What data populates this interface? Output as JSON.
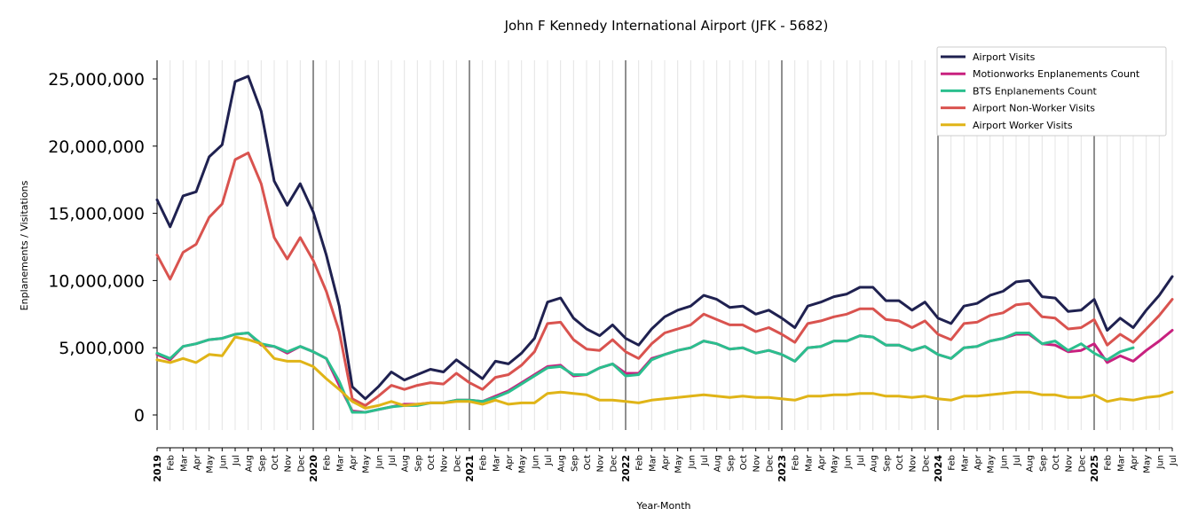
{
  "chart_data": {
    "type": "line",
    "title": "John F Kennedy International Airport (JFK - 5682)",
    "xlabel": "Year-Month",
    "ylabel": "Enplanements / Visitations",
    "ylim": [
      -1200000,
      26500000
    ],
    "yticks": [
      0,
      5000000,
      10000000,
      15000000,
      20000000,
      25000000
    ],
    "ytick_labels": [
      "0",
      "5,000,000",
      "10,000,000",
      "15,000,000",
      "20,000,000",
      "25,000,000"
    ],
    "grid": "vertical monthly",
    "legend_position": "top-right",
    "x": [
      "2019-01",
      "2019-02",
      "2019-03",
      "2019-04",
      "2019-05",
      "2019-06",
      "2019-07",
      "2019-08",
      "2019-09",
      "2019-10",
      "2019-11",
      "2019-12",
      "2020-01",
      "2020-02",
      "2020-03",
      "2020-04",
      "2020-05",
      "2020-06",
      "2020-07",
      "2020-08",
      "2020-09",
      "2020-10",
      "2020-11",
      "2020-12",
      "2021-01",
      "2021-02",
      "2021-03",
      "2021-04",
      "2021-05",
      "2021-06",
      "2021-07",
      "2021-08",
      "2021-09",
      "2021-10",
      "2021-11",
      "2021-12",
      "2022-01",
      "2022-02",
      "2022-03",
      "2022-04",
      "2022-05",
      "2022-06",
      "2022-07",
      "2022-08",
      "2022-09",
      "2022-10",
      "2022-11",
      "2022-12",
      "2023-01",
      "2023-02",
      "2023-03",
      "2023-04",
      "2023-05",
      "2023-06",
      "2023-07",
      "2023-08",
      "2023-09",
      "2023-10",
      "2023-11",
      "2023-12",
      "2024-01",
      "2024-02",
      "2024-03",
      "2024-04",
      "2024-05",
      "2024-06",
      "2024-07",
      "2024-08",
      "2024-09",
      "2024-10",
      "2024-11",
      "2024-12",
      "2025-01",
      "2025-02",
      "2025-03",
      "2025-04",
      "2025-05",
      "2025-06",
      "2025-07"
    ],
    "x_tick_labels": [
      "2019",
      "Feb",
      "Mar",
      "Apr",
      "May",
      "Jun",
      "Jul",
      "Aug",
      "Sep",
      "Oct",
      "Nov",
      "Dec",
      "2020",
      "Feb",
      "Mar",
      "Apr",
      "May",
      "Jun",
      "Jul",
      "Aug",
      "Sep",
      "Oct",
      "Nov",
      "Dec",
      "2021",
      "Feb",
      "Mar",
      "Apr",
      "May",
      "Jun",
      "Jul",
      "Aug",
      "Sep",
      "Oct",
      "Nov",
      "Dec",
      "2022",
      "Feb",
      "Mar",
      "Apr",
      "May",
      "Jun",
      "Jul",
      "Aug",
      "Sep",
      "Oct",
      "Nov",
      "Dec",
      "2023",
      "Feb",
      "Mar",
      "Apr",
      "May",
      "Jun",
      "Jul",
      "Aug",
      "Sep",
      "Oct",
      "Nov",
      "Dec",
      "2024",
      "Feb",
      "Mar",
      "Apr",
      "May",
      "Jun",
      "Jul",
      "Aug",
      "Sep",
      "Oct",
      "Nov",
      "Dec",
      "2025",
      "Feb",
      "Mar",
      "Apr",
      "May",
      "Jun",
      "Jul"
    ],
    "series": [
      {
        "name": "Airport Visits",
        "color": "#1f2150",
        "values": [
          16000000,
          14000000,
          16300000,
          16600000,
          19200000,
          20100000,
          24800000,
          25200000,
          22600000,
          17400000,
          15600000,
          17200000,
          15100000,
          11900000,
          8100000,
          2100000,
          1200000,
          2100000,
          3200000,
          2600000,
          3000000,
          3400000,
          3200000,
          4100000,
          3400000,
          2700000,
          4000000,
          3800000,
          4600000,
          5700000,
          8400000,
          8700000,
          7200000,
          6400000,
          5900000,
          6700000,
          5700000,
          5200000,
          6400000,
          7300000,
          7800000,
          8100000,
          8900000,
          8600000,
          8000000,
          8100000,
          7500000,
          7800000,
          7200000,
          6500000,
          8100000,
          8400000,
          8800000,
          9000000,
          9500000,
          9500000,
          8500000,
          8500000,
          7800000,
          8400000,
          7200000,
          6800000,
          8100000,
          8300000,
          8900000,
          9200000,
          9900000,
          10000000,
          8800000,
          8700000,
          7700000,
          7800000,
          8600000,
          6300000,
          7200000,
          6500000,
          7800000,
          8900000,
          10300000
        ]
      },
      {
        "name": "Motionworks Enplanements Count",
        "color": "#c8217f",
        "values": [
          4500000,
          4100000,
          5100000,
          5300000,
          5600000,
          5700000,
          6000000,
          6100000,
          5200000,
          5100000,
          4600000,
          5100000,
          4700000,
          4200000,
          2200000,
          300000,
          200000,
          400000,
          600000,
          800000,
          800000,
          900000,
          900000,
          1100000,
          1100000,
          1000000,
          1400000,
          1800000,
          2400000,
          3000000,
          3600000,
          3700000,
          2900000,
          3000000,
          3500000,
          3800000,
          3100000,
          3100000,
          4200000,
          4500000,
          4800000,
          5000000,
          5500000,
          5300000,
          4900000,
          5000000,
          4600000,
          4800000,
          4500000,
          4000000,
          5000000,
          5100000,
          5500000,
          5500000,
          5900000,
          5800000,
          5200000,
          5200000,
          4800000,
          5100000,
          4500000,
          4200000,
          5000000,
          5100000,
          5500000,
          5700000,
          6000000,
          6000000,
          5300000,
          5200000,
          4700000,
          4800000,
          5300000,
          3900000,
          4400000,
          4000000,
          4800000,
          5500000,
          6300000
        ]
      },
      {
        "name": "BTS Enplanements Count",
        "color": "#2bbf8e",
        "values": [
          4600000,
          4200000,
          5100000,
          5300000,
          5600000,
          5700000,
          6000000,
          6100000,
          5300000,
          5100000,
          4700000,
          5100000,
          4700000,
          4200000,
          2500000,
          200000,
          200000,
          400000,
          600000,
          700000,
          700000,
          900000,
          900000,
          1100000,
          1100000,
          1000000,
          1300000,
          1700000,
          2300000,
          2900000,
          3500000,
          3600000,
          3000000,
          3000000,
          3500000,
          3800000,
          2900000,
          3000000,
          4100000,
          4500000,
          4800000,
          5000000,
          5500000,
          5300000,
          4900000,
          5000000,
          4600000,
          4800000,
          4500000,
          4000000,
          5000000,
          5100000,
          5500000,
          5500000,
          5900000,
          5800000,
          5200000,
          5200000,
          4800000,
          5100000,
          4500000,
          4200000,
          5000000,
          5100000,
          5500000,
          5700000,
          6100000,
          6100000,
          5300000,
          5500000,
          4800000,
          5300000,
          4600000,
          4100000,
          4700000,
          5000000,
          null,
          null,
          null
        ]
      },
      {
        "name": "Airport Non-Worker Visits",
        "color": "#d9534f",
        "values": [
          11900000,
          10100000,
          12100000,
          12700000,
          14700000,
          15700000,
          19000000,
          19500000,
          17200000,
          13200000,
          11600000,
          13200000,
          11500000,
          9200000,
          6200000,
          1200000,
          700000,
          1400000,
          2200000,
          1900000,
          2200000,
          2400000,
          2300000,
          3100000,
          2400000,
          1900000,
          2800000,
          3000000,
          3700000,
          4700000,
          6800000,
          6900000,
          5600000,
          4900000,
          4800000,
          5600000,
          4700000,
          4200000,
          5300000,
          6100000,
          6400000,
          6700000,
          7500000,
          7100000,
          6700000,
          6700000,
          6200000,
          6500000,
          6000000,
          5400000,
          6800000,
          7000000,
          7300000,
          7500000,
          7900000,
          7900000,
          7100000,
          7000000,
          6500000,
          7000000,
          6000000,
          5600000,
          6800000,
          6900000,
          7400000,
          7600000,
          8200000,
          8300000,
          7300000,
          7200000,
          6400000,
          6500000,
          7100000,
          5200000,
          6000000,
          5400000,
          6400000,
          7400000,
          8600000
        ]
      },
      {
        "name": "Airport Worker Visits",
        "color": "#e0b417",
        "values": [
          4100000,
          3900000,
          4200000,
          3900000,
          4500000,
          4400000,
          5800000,
          5600000,
          5300000,
          4200000,
          4000000,
          4000000,
          3600000,
          2700000,
          1900000,
          1000000,
          500000,
          700000,
          1000000,
          700000,
          800000,
          900000,
          900000,
          1000000,
          1000000,
          800000,
          1100000,
          800000,
          900000,
          900000,
          1600000,
          1700000,
          1600000,
          1500000,
          1100000,
          1100000,
          1000000,
          900000,
          1100000,
          1200000,
          1300000,
          1400000,
          1500000,
          1400000,
          1300000,
          1400000,
          1300000,
          1300000,
          1200000,
          1100000,
          1400000,
          1400000,
          1500000,
          1500000,
          1600000,
          1600000,
          1400000,
          1400000,
          1300000,
          1400000,
          1200000,
          1100000,
          1400000,
          1400000,
          1500000,
          1600000,
          1700000,
          1700000,
          1500000,
          1500000,
          1300000,
          1300000,
          1500000,
          1000000,
          1200000,
          1100000,
          1300000,
          1400000,
          1700000
        ]
      }
    ]
  }
}
